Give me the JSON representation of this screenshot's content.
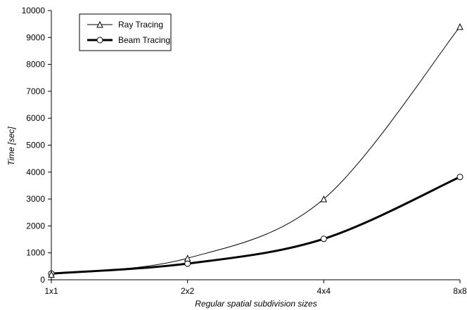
{
  "chart_data": {
    "type": "line",
    "title": "",
    "xlabel": "Regular spatial subdivision sizes",
    "ylabel": "Time [sec]",
    "categories": [
      "1x1",
      "2x2",
      "4x4",
      "8x8"
    ],
    "ylim": [
      0,
      10000
    ],
    "yticks": [
      "0",
      "1000",
      "2000",
      "3000",
      "4000",
      "5000",
      "6000",
      "7000",
      "8000",
      "9000",
      "10000"
    ],
    "grid": false,
    "legend_position": "top-left",
    "series": [
      {
        "name": "Ray Tracing",
        "marker": "triangle",
        "values": [
          200,
          800,
          3000,
          9400
        ],
        "color": "#000000",
        "line_style": "thin"
      },
      {
        "name": "Beam Tracing",
        "marker": "circle",
        "values": [
          230,
          600,
          1520,
          3820
        ],
        "color": "#000000",
        "line_style": "thick"
      }
    ]
  }
}
